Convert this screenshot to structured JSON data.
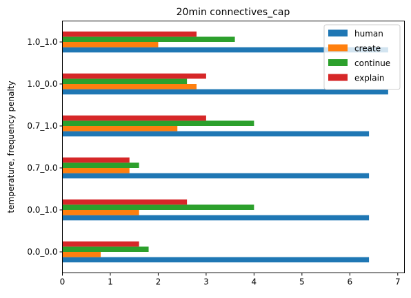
{
  "chart_data": {
    "type": "bar",
    "orientation": "horizontal",
    "title": "20min connectives_cap",
    "xlabel": "",
    "ylabel": "temperature, frequency penalty",
    "categories": [
      "0.0_0.0",
      "0.0_1.0",
      "0.7_0.0",
      "0.7_1.0",
      "1.0_0.0",
      "1.0_1.0"
    ],
    "xlim": [
      0,
      7.14
    ],
    "xticks": [
      0,
      1,
      2,
      3,
      4,
      5,
      6,
      7
    ],
    "legend_position": "top-right",
    "grid": false,
    "series": [
      {
        "name": "human",
        "color": "#1f77b4",
        "values": [
          6.4,
          6.4,
          6.4,
          6.4,
          6.8,
          6.8
        ]
      },
      {
        "name": "create",
        "color": "#ff7f0e",
        "values": [
          0.8,
          1.6,
          1.4,
          2.4,
          2.8,
          2.0
        ]
      },
      {
        "name": "continue",
        "color": "#2ca02c",
        "values": [
          1.8,
          4.0,
          1.6,
          4.0,
          2.6,
          3.6
        ]
      },
      {
        "name": "explain",
        "color": "#d62728",
        "values": [
          1.6,
          2.6,
          1.4,
          3.0,
          3.0,
          2.8
        ]
      }
    ]
  }
}
